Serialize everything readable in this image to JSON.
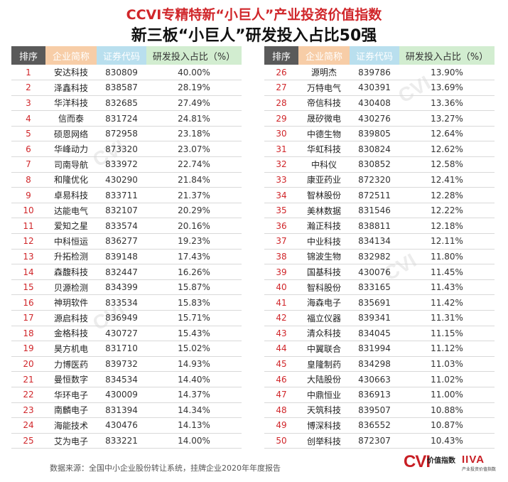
{
  "header": {
    "title": "CCVI专精特新“小巨人”产业投资价值指数",
    "subtitle": "新三板“小巨人”研发投入占比50强"
  },
  "columns": [
    "排序",
    "企业简称",
    "证券代码",
    "研发投入占比（%）"
  ],
  "rows": [
    {
      "rank": "1",
      "name": "安达科技",
      "code": "830809",
      "pct": "40.00%"
    },
    {
      "rank": "2",
      "name": "泽鑫科技",
      "code": "838587",
      "pct": "28.19%"
    },
    {
      "rank": "3",
      "name": "华洋科技",
      "code": "832685",
      "pct": "27.49%"
    },
    {
      "rank": "4",
      "name": "信而泰",
      "code": "831724",
      "pct": "24.81%"
    },
    {
      "rank": "5",
      "name": "硕恩网络",
      "code": "872958",
      "pct": "23.18%"
    },
    {
      "rank": "6",
      "name": "华峰动力",
      "code": "873320",
      "pct": "23.07%"
    },
    {
      "rank": "7",
      "name": "司南导航",
      "code": "833972",
      "pct": "22.74%"
    },
    {
      "rank": "8",
      "name": "和隆优化",
      "code": "430290",
      "pct": "21.84%"
    },
    {
      "rank": "9",
      "name": "卓易科技",
      "code": "833711",
      "pct": "21.37%"
    },
    {
      "rank": "10",
      "name": "达能电气",
      "code": "832107",
      "pct": "20.29%"
    },
    {
      "rank": "11",
      "name": "爱知之星",
      "code": "833574",
      "pct": "20.16%"
    },
    {
      "rank": "12",
      "name": "中科恒运",
      "code": "836277",
      "pct": "19.23%"
    },
    {
      "rank": "13",
      "name": "升拓检测",
      "code": "839148",
      "pct": "17.43%"
    },
    {
      "rank": "14",
      "name": "森馥科技",
      "code": "832447",
      "pct": "16.26%"
    },
    {
      "rank": "15",
      "name": "贝源检测",
      "code": "834399",
      "pct": "15.87%"
    },
    {
      "rank": "16",
      "name": "神玥软件",
      "code": "833534",
      "pct": "15.83%"
    },
    {
      "rank": "17",
      "name": "源启科技",
      "code": "836949",
      "pct": "15.71%"
    },
    {
      "rank": "18",
      "name": "金格科技",
      "code": "430727",
      "pct": "15.43%"
    },
    {
      "rank": "19",
      "name": "昊方机电",
      "code": "831710",
      "pct": "15.02%"
    },
    {
      "rank": "20",
      "name": "力博医药",
      "code": "839732",
      "pct": "14.93%"
    },
    {
      "rank": "21",
      "name": "曼恒数字",
      "code": "834534",
      "pct": "14.40%"
    },
    {
      "rank": "22",
      "name": "华环电子",
      "code": "430009",
      "pct": "14.37%"
    },
    {
      "rank": "23",
      "name": "南麟电子",
      "code": "831394",
      "pct": "14.34%"
    },
    {
      "rank": "24",
      "name": "海能技术",
      "code": "430476",
      "pct": "14.13%"
    },
    {
      "rank": "25",
      "name": "艾为电子",
      "code": "833221",
      "pct": "14.00%"
    },
    {
      "rank": "26",
      "name": "源明杰",
      "code": "839786",
      "pct": "13.90%"
    },
    {
      "rank": "27",
      "name": "万特电气",
      "code": "430391",
      "pct": "13.69%"
    },
    {
      "rank": "28",
      "name": "帝信科技",
      "code": "430408",
      "pct": "13.36%"
    },
    {
      "rank": "29",
      "name": "晟矽微电",
      "code": "430276",
      "pct": "13.27%"
    },
    {
      "rank": "30",
      "name": "中德生物",
      "code": "839805",
      "pct": "12.64%"
    },
    {
      "rank": "31",
      "name": "华虹科技",
      "code": "830824",
      "pct": "12.62%"
    },
    {
      "rank": "32",
      "name": "中科仪",
      "code": "830852",
      "pct": "12.58%"
    },
    {
      "rank": "33",
      "name": "康亚药业",
      "code": "872320",
      "pct": "12.41%"
    },
    {
      "rank": "34",
      "name": "智林股份",
      "code": "872511",
      "pct": "12.28%"
    },
    {
      "rank": "35",
      "name": "美林数据",
      "code": "831546",
      "pct": "12.22%"
    },
    {
      "rank": "36",
      "name": "瀚正科技",
      "code": "838811",
      "pct": "12.18%"
    },
    {
      "rank": "37",
      "name": "中业科技",
      "code": "834134",
      "pct": "12.11%"
    },
    {
      "rank": "38",
      "name": "锦波生物",
      "code": "832982",
      "pct": "11.80%"
    },
    {
      "rank": "39",
      "name": "国基科技",
      "code": "430076",
      "pct": "11.45%"
    },
    {
      "rank": "40",
      "name": "智科股份",
      "code": "833165",
      "pct": "11.43%"
    },
    {
      "rank": "41",
      "name": "海森电子",
      "code": "835691",
      "pct": "11.42%"
    },
    {
      "rank": "42",
      "name": "福立仪器",
      "code": "839341",
      "pct": "11.31%"
    },
    {
      "rank": "43",
      "name": "清众科技",
      "code": "834045",
      "pct": "11.15%"
    },
    {
      "rank": "44",
      "name": "中翼联合",
      "code": "831994",
      "pct": "11.12%"
    },
    {
      "rank": "45",
      "name": "皇隆制药",
      "code": "834298",
      "pct": "11.03%"
    },
    {
      "rank": "46",
      "name": "大陆股份",
      "code": "430663",
      "pct": "11.02%"
    },
    {
      "rank": "47",
      "name": "中鼎恒业",
      "code": "836913",
      "pct": "11.00%"
    },
    {
      "rank": "48",
      "name": "天筑科技",
      "code": "839507",
      "pct": "10.88%"
    },
    {
      "rank": "49",
      "name": "博深科技",
      "code": "836552",
      "pct": "10.87%"
    },
    {
      "rank": "50",
      "name": "创举科技",
      "code": "872307",
      "pct": "10.43%"
    }
  ],
  "footer": {
    "source": "数据来源：全国中小企业股份转让系统，挂牌企业2020年年度报告"
  },
  "logos": {
    "cvi_mark": "CVI",
    "cvi_name": "价值指数",
    "iiva_mark": "IIVA",
    "iiva_sub": "产业投资价值指数"
  },
  "colors": {
    "title_red": "#d0262a",
    "rank_red": "#d0262a",
    "header_rank_bg": "#5a5a5a",
    "header_name_bg": "#f7cda7",
    "header_code_bg": "#b9dfee",
    "header_pct_bg": "#d2edd0"
  }
}
